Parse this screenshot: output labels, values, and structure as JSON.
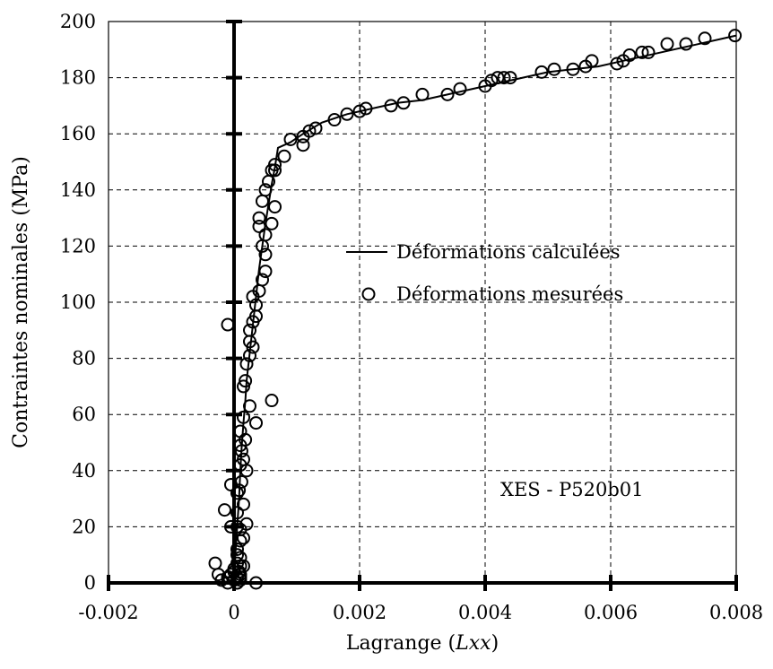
{
  "chart_data": {
    "type": "scatter",
    "xlabel_prefix": "Lagrange (",
    "xlabel_italic": "Lxx",
    "xlabel_suffix": ")",
    "ylabel": "Contraintes nominales (MPa)",
    "xlim": [
      -0.002,
      0.008
    ],
    "ylim": [
      0,
      200
    ],
    "x_ticks": [
      "-0.002",
      "0",
      "0.002",
      "0.004",
      "0.006",
      "0.008"
    ],
    "y_ticks": [
      "0",
      "20",
      "40",
      "60",
      "80",
      "100",
      "120",
      "140",
      "160",
      "180",
      "200"
    ],
    "grid": true,
    "legend_position": "middle-right",
    "annotation": "XES - P520b01",
    "series": [
      {
        "name": "Déformations calculées",
        "kind": "line",
        "color": "#000000",
        "x": [
          0,
          2e-05,
          5e-05,
          8e-05,
          0.0001,
          0.00012,
          0.00015,
          0.00018,
          0.0002,
          0.00024,
          0.00028,
          0.00032,
          0.00036,
          0.0004,
          0.00045,
          0.0005,
          0.00055,
          0.0006,
          0.00065,
          0.0007,
          0.0009,
          0.0011,
          0.0014,
          0.0018,
          0.0022,
          0.0026,
          0.003,
          0.0034,
          0.0038,
          0.0042,
          0.0046,
          0.005,
          0.0054,
          0.0058,
          0.0062,
          0.0066,
          0.007,
          0.0074,
          0.0078,
          0.008
        ],
        "y": [
          0,
          10,
          20,
          30,
          40,
          48,
          57,
          65,
          72,
          80,
          88,
          96,
          104,
          112,
          120,
          128,
          135,
          142,
          148,
          155,
          157,
          160,
          164,
          167,
          169,
          171,
          172,
          174,
          176,
          178,
          180,
          182,
          183,
          184,
          186,
          188,
          190,
          192,
          194,
          195
        ]
      },
      {
        "name": "Déformations mesurées",
        "kind": "markers",
        "marker": "open-circle",
        "color": "#000000",
        "x": [
          0.00798,
          0.0075,
          0.0072,
          0.0069,
          0.0066,
          0.0065,
          0.0063,
          0.0062,
          0.0061,
          0.0057,
          0.0056,
          0.0054,
          0.0051,
          0.0049,
          0.0044,
          0.0043,
          0.0042,
          0.0041,
          0.004,
          0.0036,
          0.0034,
          0.003,
          0.0027,
          0.0025,
          0.0021,
          0.002,
          0.0018,
          0.0016,
          0.0013,
          0.0012,
          0.0011,
          0.0011,
          0.0009,
          0.0008,
          0.00065,
          0.0006,
          0.00065,
          0.00055,
          0.0005,
          0.00045,
          0.0004,
          0.00065,
          0.0004,
          0.0006,
          0.0005,
          0.00045,
          0.0005,
          0.0005,
          0.00045,
          0.0004,
          0.00035,
          0.0003,
          0.00035,
          0.0003,
          0.00025,
          0.00025,
          0.0003,
          0.00025,
          0.0002,
          0.00018,
          0.0006,
          0.00015,
          0.00025,
          0.00035,
          0.0001,
          -0.0001,
          0.00015,
          0.0001,
          0.00018,
          0.00012,
          0.0001,
          0.00015,
          0.0002,
          5e-05,
          0.00012,
          0.00015,
          -5e-05,
          8e-05,
          5e-05,
          5e-05,
          0.00015,
          -0.00015,
          0.0002,
          0.0001,
          0.0001,
          -5e-05,
          5e-05,
          5e-05,
          0.0001,
          5e-05,
          0.0001,
          0.00015,
          0,
          -0.0003,
          -0.00025,
          -0.0002,
          -0.0001,
          0,
          0.0001,
          -0.0001,
          5e-05,
          8e-05,
          0.0001,
          0.00035,
          0,
          5e-05,
          -5e-05,
          0.0001,
          5e-05,
          -8e-05
        ],
        "y": [
          195,
          194,
          192,
          192,
          189,
          189,
          188,
          186,
          185,
          186,
          184,
          183,
          183,
          182,
          180,
          180,
          180,
          179,
          177,
          176,
          174,
          174,
          171,
          170,
          169,
          168,
          167,
          165,
          162,
          161,
          156,
          159,
          158,
          152,
          149,
          147,
          147,
          143,
          140,
          136,
          130,
          134,
          127,
          128,
          124,
          120,
          117,
          111,
          108,
          104,
          99,
          102,
          95,
          93,
          90,
          86,
          84,
          81,
          78,
          72,
          65,
          70,
          63,
          57,
          54,
          92,
          59,
          49,
          51,
          47,
          42,
          44,
          40,
          32,
          36,
          28,
          35,
          33,
          25,
          20,
          16,
          26,
          21,
          19,
          15,
          20,
          12,
          10,
          9,
          7,
          6,
          6,
          5,
          7,
          3,
          1,
          2,
          4,
          3,
          0,
          0,
          4,
          2,
          0,
          1,
          2,
          3,
          1,
          0,
          2
        ]
      }
    ]
  }
}
